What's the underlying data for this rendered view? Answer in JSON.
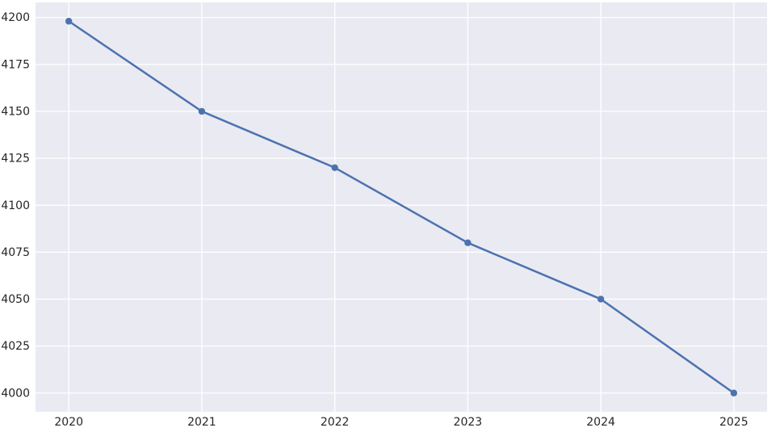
{
  "chart_data": {
    "type": "line",
    "title": "",
    "xlabel": "",
    "ylabel": "",
    "x": [
      2020,
      2021,
      2022,
      2023,
      2024,
      2025
    ],
    "series": [
      {
        "name": "value",
        "values": [
          4198,
          4150,
          4120,
          4080,
          4050,
          4000
        ]
      }
    ],
    "xticks": [
      2020,
      2021,
      2022,
      2023,
      2024,
      2025
    ],
    "xtick_labels": [
      "2020",
      "2021",
      "2022",
      "2023",
      "2024",
      "2025"
    ],
    "yticks": [
      4000,
      4025,
      4050,
      4075,
      4100,
      4125,
      4150,
      4175,
      4200
    ],
    "ytick_labels": [
      "4000",
      "4025",
      "4050",
      "4075",
      "4100",
      "4125",
      "4150",
      "4175",
      "4200"
    ],
    "xlim": [
      2019.75,
      2025.25
    ],
    "ylim": [
      3990,
      4208
    ],
    "grid": true,
    "legend": false,
    "style": "seaborn-darkgrid",
    "colors": {
      "line": "#4c72b0",
      "marker": "#4c72b0",
      "plot_background": "#eaeaf2",
      "figure_background": "#ffffff",
      "gridline": "#ffffff",
      "tick_label": "#262626"
    },
    "marker": "circle"
  }
}
